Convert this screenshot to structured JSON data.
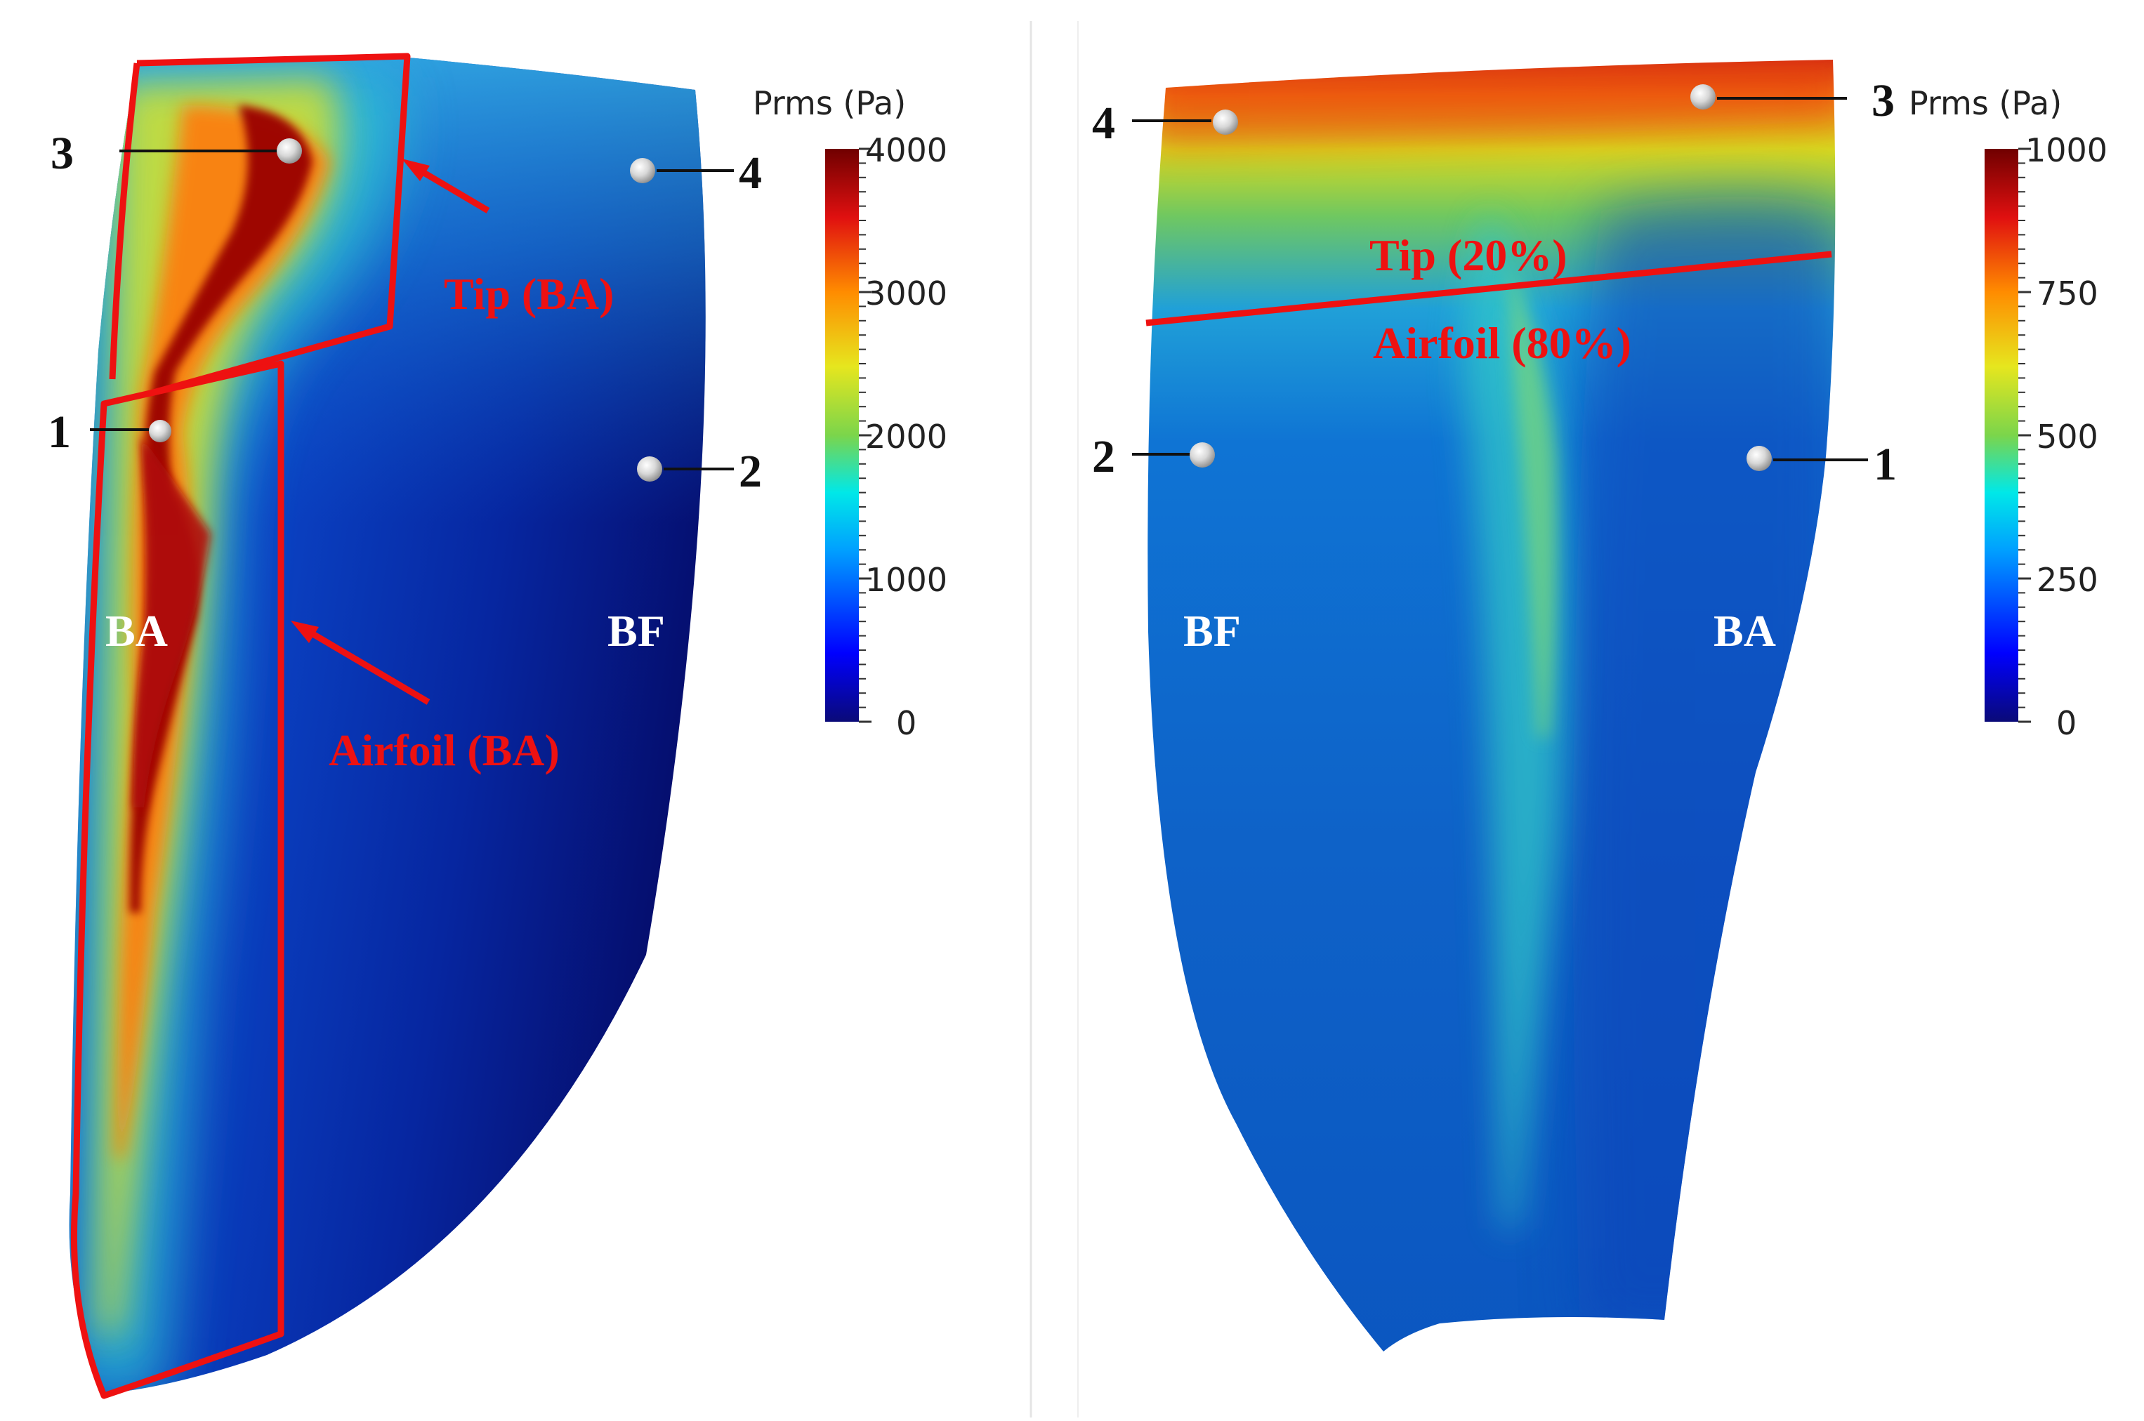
{
  "colors": {
    "annotation_red": "#ee1111",
    "label_black": "#111111",
    "label_white": "#ffffff",
    "divider": "#dddddd",
    "cmap": [
      "#0a0a78",
      "#0000ff",
      "#00a0ff",
      "#00e8e8",
      "#7bd54b",
      "#e6e61e",
      "#ff8c00",
      "#e01010",
      "#700000"
    ]
  },
  "left_panel": {
    "colorbar": {
      "title": "Prms (Pa)",
      "ticks": [
        "4000",
        "3000",
        "2000",
        "1000",
        "0"
      ]
    },
    "probes": [
      {
        "label": "3"
      },
      {
        "label": "4"
      },
      {
        "label": "1"
      },
      {
        "label": "2"
      }
    ],
    "regions": {
      "tip_label": "Tip (BA)",
      "airfoil_label": "Airfoil (BA)"
    },
    "edges": {
      "leading": "BA",
      "trailing": "BF"
    }
  },
  "right_panel": {
    "colorbar": {
      "title": "Prms (Pa)",
      "ticks": [
        "1000",
        "750",
        "500",
        "250",
        "0"
      ]
    },
    "probes": [
      {
        "label": "4"
      },
      {
        "label": "3"
      },
      {
        "label": "2"
      },
      {
        "label": "1"
      }
    ],
    "regions": {
      "tip_label": "Tip (20%)",
      "airfoil_label": "Airfoil (80%)"
    },
    "edges": {
      "trailing": "BF",
      "leading": "BA"
    }
  }
}
